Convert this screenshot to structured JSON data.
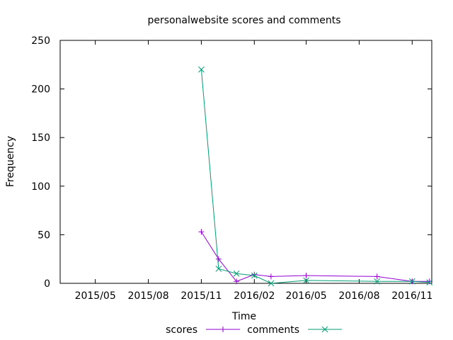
{
  "chart_data": {
    "type": "line",
    "title": "personalwebsite scores and comments",
    "xlabel": "Time",
    "ylabel": "Frequency",
    "xlim": [
      "2015-03-01",
      "2016-12-05"
    ],
    "ylim": [
      0,
      250
    ],
    "yticks": [
      0,
      50,
      100,
      150,
      200,
      250
    ],
    "xticks": [
      {
        "date": "2015-05-01",
        "label": "2015/05"
      },
      {
        "date": "2015-08-01",
        "label": "2015/08"
      },
      {
        "date": "2015-11-01",
        "label": "2015/11"
      },
      {
        "date": "2016-02-01",
        "label": "2016/02"
      },
      {
        "date": "2016-05-01",
        "label": "2016/05"
      },
      {
        "date": "2016-08-01",
        "label": "2016/08"
      },
      {
        "date": "2016-11-01",
        "label": "2016/11"
      }
    ],
    "legend_position": "bottom",
    "grid": false,
    "series": [
      {
        "name": "scores",
        "color": "#9400d3",
        "marker": "plus",
        "points": [
          {
            "x": "2015-11-01",
            "y": 53
          },
          {
            "x": "2015-12-01",
            "y": 25
          },
          {
            "x": "2016-01-01",
            "y": 2
          },
          {
            "x": "2016-02-01",
            "y": 9
          },
          {
            "x": "2016-03-01",
            "y": 7
          },
          {
            "x": "2016-05-01",
            "y": 8
          },
          {
            "x": "2016-09-01",
            "y": 7
          },
          {
            "x": "2016-11-01",
            "y": 2
          },
          {
            "x": "2016-12-01",
            "y": 2
          }
        ]
      },
      {
        "name": "comments",
        "color": "#009e73",
        "marker": "cross",
        "points": [
          {
            "x": "2015-11-01",
            "y": 220
          },
          {
            "x": "2015-12-01",
            "y": 15
          },
          {
            "x": "2016-01-01",
            "y": 10
          },
          {
            "x": "2016-02-01",
            "y": 8
          },
          {
            "x": "2016-03-01",
            "y": 0
          },
          {
            "x": "2016-05-01",
            "y": 3
          },
          {
            "x": "2016-09-01",
            "y": 2
          },
          {
            "x": "2016-11-01",
            "y": 2
          },
          {
            "x": "2016-12-01",
            "y": 1
          }
        ]
      }
    ]
  }
}
